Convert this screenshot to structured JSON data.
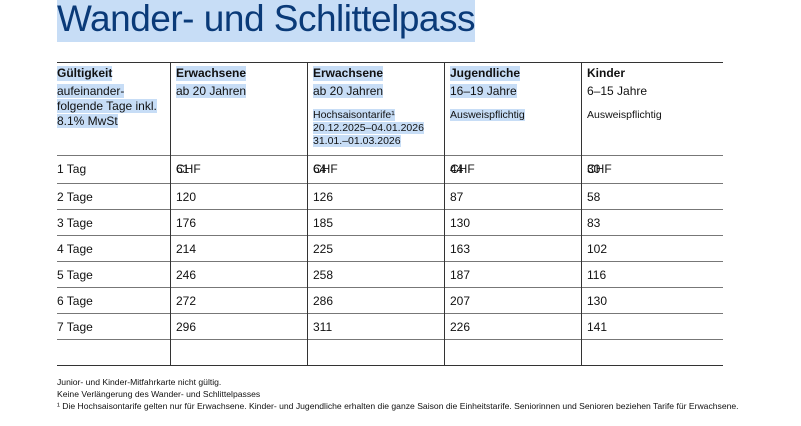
{
  "title": "Wander- und Schlittelpass",
  "table": {
    "header": [
      {
        "title": "Gültigkeit",
        "lines": [
          "aufeinander-",
          "folgende Tage inkl.",
          "8.1% MwSt"
        ]
      },
      {
        "title": "Erwachsene",
        "lines": [
          "ab 20 Jahren"
        ]
      },
      {
        "title": "Erwachsene",
        "lines": [
          "ab 20 Jahren"
        ],
        "notes": [
          "Hochsaisontarife¹",
          "20.12.2025–04.01.2026",
          "31.01.–01.03.2026"
        ]
      },
      {
        "title": "Jugendliche",
        "lines": [
          "16–19 Jahre"
        ],
        "notes": [
          "Ausweispflichtig"
        ]
      },
      {
        "title": "Kinder",
        "lines": [
          "6–15 Jahre"
        ],
        "notes": [
          "Ausweispflichtig"
        ]
      }
    ],
    "currency_row": [
      "CHF",
      "CHF",
      "CHF",
      "CHF"
    ],
    "rows": [
      {
        "label": "1 Tag",
        "prices": [
          61,
          64,
          44,
          30
        ]
      },
      {
        "label": "2 Tage",
        "prices": [
          120,
          126,
          87,
          58
        ]
      },
      {
        "label": "3 Tage",
        "prices": [
          176,
          185,
          130,
          83
        ]
      },
      {
        "label": "4 Tage",
        "prices": [
          214,
          225,
          163,
          102
        ]
      },
      {
        "label": "5 Tage",
        "prices": [
          246,
          258,
          187,
          116
        ]
      },
      {
        "label": "6 Tage",
        "prices": [
          272,
          286,
          207,
          130
        ]
      },
      {
        "label": "7 Tage",
        "prices": [
          296,
          311,
          226,
          141
        ]
      }
    ]
  },
  "footnotes": [
    "Junior- und Kinder-Mitfahrkarte nicht gültig.",
    "Keine Verlängerung des Wander- und Schlittelpasses",
    "¹  Die Hochsaisontarife gelten nur für Erwachsene. Kinder- und Jugendliche erhalten die ganze Saison die Einheitstarife. Seniorinnen und Senioren beziehen Tarife für Erwachsene."
  ]
}
